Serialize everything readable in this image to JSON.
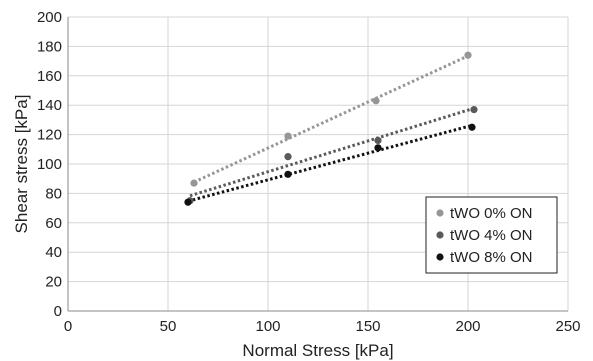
{
  "chart_data": {
    "type": "scatter",
    "title": "",
    "xlabel": "Normal Stress [kPa]",
    "ylabel": "Shear stress [kPa]",
    "xlim": [
      0,
      250
    ],
    "ylim": [
      0,
      200
    ],
    "x_ticks": [
      0,
      50,
      100,
      150,
      200,
      250
    ],
    "y_ticks": [
      0,
      20,
      40,
      60,
      80,
      100,
      120,
      140,
      160,
      180,
      200
    ],
    "grid": true,
    "legend_position": "bottom-right",
    "series": [
      {
        "name": "tWO 0% ON",
        "color": "#969696",
        "trendline": "linear",
        "x": [
          63,
          110,
          154,
          200
        ],
        "y": [
          87,
          119,
          143,
          174
        ]
      },
      {
        "name": "tWO 4% ON",
        "color": "#5a5a5a",
        "trendline": "linear",
        "x": [
          61,
          110,
          155,
          203
        ],
        "y": [
          75,
          105,
          116,
          137
        ]
      },
      {
        "name": "tWO 8% ON",
        "color": "#111111",
        "trendline": "linear",
        "x": [
          60,
          110,
          155,
          202
        ],
        "y": [
          74,
          93,
          111,
          125
        ]
      }
    ]
  }
}
